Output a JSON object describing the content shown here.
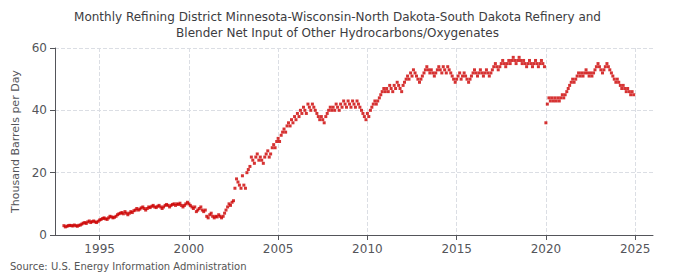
{
  "chart_data": {
    "type": "scatter",
    "title": "Monthly Refining District Minnesota-Wisconsin-North Dakota-South Dakota Refinery and\nBlender Net Input of Other Hydrocarbons/Oxygenates",
    "ylabel": "Thousand Barrels per Day",
    "annotations": [
      "Source: U.S. Energy Information Administration"
    ],
    "color": "#cc0000",
    "marker": "square",
    "grid": true,
    "xlim": [
      1992.5,
      2026.0
    ],
    "xticks": [
      1995,
      2000,
      2005,
      2010,
      2015,
      2020,
      2025
    ],
    "ylim": [
      0,
      60
    ],
    "yticks": [
      0,
      20,
      40,
      60
    ],
    "x": [
      1993.0,
      1993.08,
      1993.17,
      1993.25,
      1993.33,
      1993.42,
      1993.5,
      1993.58,
      1993.67,
      1993.75,
      1993.83,
      1993.92,
      1994.0,
      1994.08,
      1994.17,
      1994.25,
      1994.33,
      1994.42,
      1994.5,
      1994.58,
      1994.67,
      1994.75,
      1994.83,
      1994.92,
      1995.0,
      1995.08,
      1995.17,
      1995.25,
      1995.33,
      1995.42,
      1995.5,
      1995.58,
      1995.67,
      1995.75,
      1995.83,
      1995.92,
      1996.0,
      1996.08,
      1996.17,
      1996.25,
      1996.33,
      1996.42,
      1996.5,
      1996.58,
      1996.67,
      1996.75,
      1996.83,
      1996.92,
      1997.0,
      1997.08,
      1997.17,
      1997.25,
      1997.33,
      1997.42,
      1997.5,
      1997.58,
      1997.67,
      1997.75,
      1997.83,
      1997.92,
      1998.0,
      1998.08,
      1998.17,
      1998.25,
      1998.33,
      1998.42,
      1998.5,
      1998.58,
      1998.67,
      1998.75,
      1998.83,
      1998.92,
      1999.0,
      1999.08,
      1999.17,
      1999.25,
      1999.33,
      1999.42,
      1999.5,
      1999.58,
      1999.67,
      1999.75,
      1999.83,
      1999.92,
      2000.0,
      2000.08,
      2000.17,
      2000.25,
      2000.33,
      2000.42,
      2000.5,
      2000.58,
      2000.67,
      2000.75,
      2000.83,
      2000.92,
      2001.0,
      2001.08,
      2001.17,
      2001.25,
      2001.33,
      2001.42,
      2001.5,
      2001.58,
      2001.67,
      2001.75,
      2001.83,
      2001.92,
      2002.0,
      2002.08,
      2002.17,
      2002.25,
      2002.33,
      2002.42,
      2002.5,
      2002.58,
      2002.67,
      2002.75,
      2002.83,
      2002.92,
      2003.0,
      2003.08,
      2003.17,
      2003.25,
      2003.33,
      2003.42,
      2003.5,
      2003.58,
      2003.67,
      2003.75,
      2003.83,
      2003.92,
      2004.0,
      2004.08,
      2004.17,
      2004.25,
      2004.33,
      2004.42,
      2004.5,
      2004.58,
      2004.67,
      2004.75,
      2004.83,
      2004.92,
      2005.0,
      2005.08,
      2005.17,
      2005.25,
      2005.33,
      2005.42,
      2005.5,
      2005.58,
      2005.67,
      2005.75,
      2005.83,
      2005.92,
      2006.0,
      2006.08,
      2006.17,
      2006.25,
      2006.33,
      2006.42,
      2006.5,
      2006.58,
      2006.67,
      2006.75,
      2006.83,
      2006.92,
      2007.0,
      2007.08,
      2007.17,
      2007.25,
      2007.33,
      2007.42,
      2007.5,
      2007.58,
      2007.67,
      2007.75,
      2007.83,
      2007.92,
      2008.0,
      2008.08,
      2008.17,
      2008.25,
      2008.33,
      2008.42,
      2008.5,
      2008.58,
      2008.67,
      2008.75,
      2008.83,
      2008.92,
      2009.0,
      2009.08,
      2009.17,
      2009.25,
      2009.33,
      2009.42,
      2009.5,
      2009.58,
      2009.67,
      2009.75,
      2009.83,
      2009.92,
      2010.0,
      2010.08,
      2010.17,
      2010.25,
      2010.33,
      2010.42,
      2010.5,
      2010.58,
      2010.67,
      2010.75,
      2010.83,
      2010.92,
      2011.0,
      2011.08,
      2011.17,
      2011.25,
      2011.33,
      2011.42,
      2011.5,
      2011.58,
      2011.67,
      2011.75,
      2011.83,
      2011.92,
      2012.0,
      2012.08,
      2012.17,
      2012.25,
      2012.33,
      2012.42,
      2012.5,
      2012.58,
      2012.67,
      2012.75,
      2012.83,
      2012.92,
      2013.0,
      2013.08,
      2013.17,
      2013.25,
      2013.33,
      2013.42,
      2013.5,
      2013.58,
      2013.67,
      2013.75,
      2013.83,
      2013.92,
      2014.0,
      2014.08,
      2014.17,
      2014.25,
      2014.33,
      2014.42,
      2014.5,
      2014.58,
      2014.67,
      2014.75,
      2014.83,
      2014.92,
      2015.0,
      2015.08,
      2015.17,
      2015.25,
      2015.33,
      2015.42,
      2015.5,
      2015.58,
      2015.67,
      2015.75,
      2015.83,
      2015.92,
      2016.0,
      2016.08,
      2016.17,
      2016.25,
      2016.33,
      2016.42,
      2016.5,
      2016.58,
      2016.67,
      2016.75,
      2016.83,
      2016.92,
      2017.0,
      2017.08,
      2017.17,
      2017.25,
      2017.33,
      2017.42,
      2017.5,
      2017.58,
      2017.67,
      2017.75,
      2017.83,
      2017.92,
      2018.0,
      2018.08,
      2018.17,
      2018.25,
      2018.33,
      2018.42,
      2018.5,
      2018.58,
      2018.67,
      2018.75,
      2018.83,
      2018.92,
      2019.0,
      2019.08,
      2019.17,
      2019.25,
      2019.33,
      2019.42,
      2019.5,
      2019.58,
      2019.67,
      2019.75,
      2019.83,
      2019.92,
      2020.0,
      2020.08,
      2020.17,
      2020.25,
      2020.33,
      2020.42,
      2020.5,
      2020.58,
      2020.67,
      2020.75,
      2020.83,
      2020.92,
      2021.0,
      2021.08,
      2021.17,
      2021.25,
      2021.33,
      2021.42,
      2021.5,
      2021.58,
      2021.67,
      2021.75,
      2021.83,
      2021.92,
      2022.0,
      2022.08,
      2022.17,
      2022.25,
      2022.33,
      2022.42,
      2022.5,
      2022.58,
      2022.67,
      2022.75,
      2022.83,
      2022.92,
      2023.0,
      2023.08,
      2023.17,
      2023.25,
      2023.33,
      2023.42,
      2023.5,
      2023.58,
      2023.67,
      2023.75,
      2023.83,
      2023.92,
      2024.0,
      2024.08,
      2024.17,
      2024.25,
      2024.33,
      2024.42,
      2024.5,
      2024.58,
      2024.67,
      2024.75,
      2024.83,
      2024.92
    ],
    "values": [
      3.0,
      2.6,
      2.8,
      3.0,
      3.1,
      3.0,
      2.9,
      3.2,
      3.0,
      2.8,
      3.1,
      3.2,
      3.5,
      3.8,
      4.0,
      3.7,
      4.2,
      4.5,
      4.0,
      4.3,
      4.5,
      4.2,
      4.0,
      4.4,
      4.8,
      5.0,
      5.3,
      5.5,
      5.2,
      5.0,
      5.5,
      6.0,
      5.8,
      5.5,
      5.7,
      6.0,
      6.5,
      6.8,
      7.0,
      7.2,
      6.8,
      7.5,
      7.0,
      6.5,
      7.0,
      7.5,
      7.2,
      7.8,
      8.0,
      8.5,
      8.0,
      8.3,
      8.7,
      9.0,
      8.5,
      8.0,
      8.5,
      9.0,
      8.8,
      9.2,
      9.5,
      9.0,
      8.8,
      9.2,
      9.5,
      9.0,
      8.5,
      9.0,
      9.5,
      9.8,
      9.5,
      9.0,
      9.5,
      9.8,
      10.0,
      9.5,
      10.0,
      9.8,
      10.2,
      9.5,
      9.0,
      9.5,
      10.0,
      10.5,
      10.0,
      9.5,
      9.0,
      8.5,
      9.0,
      7.5,
      8.0,
      8.5,
      9.0,
      8.0,
      7.5,
      8.0,
      6.0,
      5.5,
      6.5,
      7.0,
      6.0,
      5.5,
      6.0,
      5.8,
      6.5,
      6.0,
      5.5,
      6.0,
      7.0,
      8.0,
      9.0,
      10.0,
      9.5,
      10.5,
      11.0,
      15.0,
      18.0,
      17.0,
      16.0,
      15.0,
      19.0,
      16.0,
      15.0,
      20.0,
      21.0,
      22.0,
      25.0,
      24.0,
      23.0,
      25.0,
      26.0,
      24.0,
      25.0,
      24.0,
      23.0,
      25.0,
      26.0,
      27.0,
      25.0,
      26.0,
      28.0,
      29.0,
      28.0,
      30.0,
      31.0,
      30.0,
      32.0,
      33.0,
      34.0,
      33.0,
      35.0,
      36.0,
      35.0,
      37.0,
      36.0,
      38.0,
      37.0,
      39.0,
      38.0,
      40.0,
      39.0,
      41.0,
      40.0,
      39.0,
      42.0,
      41.0,
      40.0,
      42.0,
      41.0,
      40.0,
      39.0,
      38.0,
      37.0,
      38.0,
      37.0,
      36.0,
      38.0,
      39.0,
      40.0,
      41.0,
      40.0,
      41.0,
      40.0,
      42.0,
      41.0,
      40.0,
      42.0,
      41.0,
      43.0,
      42.0,
      41.0,
      43.0,
      42.0,
      41.0,
      43.0,
      42.0,
      41.0,
      43.0,
      42.0,
      41.0,
      40.0,
      39.0,
      38.0,
      37.0,
      39.0,
      38.0,
      40.0,
      41.0,
      42.0,
      43.0,
      42.0,
      43.0,
      44.0,
      45.0,
      46.0,
      47.0,
      46.0,
      47.0,
      46.0,
      48.0,
      47.0,
      46.0,
      48.0,
      47.0,
      49.0,
      48.0,
      47.0,
      46.0,
      48.0,
      49.0,
      50.0,
      51.0,
      50.0,
      52.0,
      51.0,
      53.0,
      52.0,
      51.0,
      50.0,
      49.0,
      50.0,
      51.0,
      52.0,
      53.0,
      54.0,
      53.0,
      52.0,
      53.0,
      52.0,
      51.0,
      52.0,
      53.0,
      54.0,
      53.0,
      52.0,
      54.0,
      53.0,
      52.0,
      54.0,
      53.0,
      52.0,
      51.0,
      50.0,
      49.0,
      50.0,
      51.0,
      52.0,
      50.0,
      51.0,
      52.0,
      51.0,
      50.0,
      49.0,
      50.0,
      51.0,
      52.0,
      53.0,
      52.0,
      51.0,
      52.0,
      53.0,
      52.0,
      51.0,
      52.0,
      53.0,
      52.0,
      51.0,
      52.0,
      53.0,
      54.0,
      55.0,
      54.0,
      53.0,
      54.0,
      55.0,
      56.0,
      55.0,
      54.0,
      55.0,
      56.0,
      55.0,
      56.0,
      57.0,
      56.0,
      55.0,
      56.0,
      57.0,
      56.0,
      55.0,
      56.0,
      55.0,
      54.0,
      55.0,
      56.0,
      55.0,
      54.0,
      55.0,
      56.0,
      55.0,
      54.0,
      55.0,
      56.0,
      55.0,
      54.0,
      36.0,
      42.0,
      44.0,
      43.0,
      44.0,
      43.0,
      44.0,
      43.0,
      44.0,
      43.0,
      44.0,
      45.0,
      44.0,
      45.0,
      46.0,
      47.0,
      48.0,
      49.0,
      50.0,
      49.0,
      50.0,
      51.0,
      52.0,
      51.0,
      52.0,
      51.0,
      52.0,
      53.0,
      52.0,
      51.0,
      52.0,
      51.0,
      52.0,
      53.0,
      54.0,
      55.0,
      54.0,
      53.0,
      52.0,
      53.0,
      54.0,
      55.0,
      54.0,
      53.0,
      52.0,
      51.0,
      50.0,
      49.0,
      50.0,
      49.0,
      48.0,
      47.0,
      48.0,
      47.0,
      46.0,
      47.0,
      46.0,
      45.0,
      46.0,
      45.0
    ]
  }
}
